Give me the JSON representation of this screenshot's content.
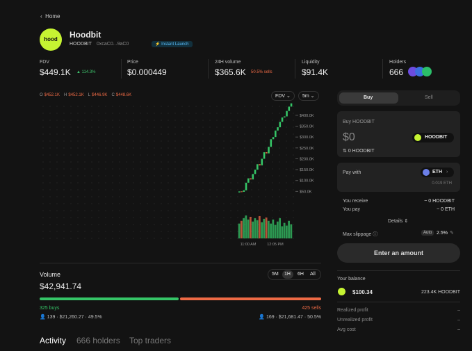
{
  "nav": {
    "back": "Home"
  },
  "token": {
    "logo": "hood",
    "name": "Hoodbit",
    "symbol": "HOODBIT",
    "address": "0xcaC0...9aC0",
    "badge": "Instant Launch"
  },
  "stats": {
    "fdv": {
      "label": "FDV",
      "value": "$449.1K",
      "change": "114.3%"
    },
    "price": {
      "label": "Price",
      "value": "$0.000449"
    },
    "volume": {
      "label": "24H volume",
      "value": "$365.6K",
      "note": "50.5% sells"
    },
    "liquidity": {
      "label": "Liquidity",
      "value": "$91.4K"
    },
    "holders": {
      "label": "Holders",
      "value": "666"
    }
  },
  "chart_data": {
    "type": "candlestick",
    "ohlc": [
      [
        "O",
        "$452.1K"
      ],
      [
        "H",
        "$452.1K"
      ],
      [
        "L",
        "$446.9K"
      ],
      [
        "C",
        "$448.6K"
      ]
    ],
    "selectors": [
      "FDV",
      "5m"
    ],
    "ylim": [
      0,
      470000
    ],
    "yticks": [
      {
        "value": 400000,
        "label": "$400.0K"
      },
      {
        "value": 350000,
        "label": "$350.0K"
      },
      {
        "value": 300000,
        "label": "$300.0K"
      },
      {
        "value": 250000,
        "label": "$250.0K"
      },
      {
        "value": 200000,
        "label": "$200.0K"
      },
      {
        "value": 150000,
        "label": "$150.0K"
      },
      {
        "value": 100000,
        "label": "$100.0K"
      },
      {
        "value": 50000,
        "label": "$50.0K"
      }
    ],
    "xticks": [
      "11:00 AM",
      "12:05 PM"
    ],
    "open": [
      45000,
      50000,
      48000,
      55000,
      90000,
      110000,
      105000,
      130000,
      150000,
      175000,
      170000,
      200000,
      230000,
      225000,
      255000,
      290000,
      300000,
      330000,
      345000,
      370000,
      390000,
      395000,
      420000,
      440000
    ],
    "close": [
      50000,
      48000,
      55000,
      90000,
      110000,
      105000,
      130000,
      150000,
      175000,
      170000,
      200000,
      230000,
      225000,
      255000,
      290000,
      300000,
      330000,
      345000,
      370000,
      390000,
      395000,
      420000,
      440000,
      455000
    ],
    "volume": [
      22,
      26,
      30,
      34,
      28,
      32,
      25,
      30,
      27,
      33,
      24,
      29,
      31,
      26,
      22,
      28,
      20,
      25,
      30,
      18,
      23,
      19,
      26,
      21
    ]
  },
  "trades": {
    "title": "Volume",
    "total": "$42,941.74",
    "ranges": [
      "5M",
      "1H",
      "6H",
      "All"
    ],
    "buys": "325 buys",
    "sells": "425 sells",
    "buy_stats": "139 · $21,260.27 · 49.5%",
    "sell_stats": "169 · $21,681.47 · 50.5%"
  },
  "tabs": [
    "Activity",
    "666 holders",
    "Top traders"
  ],
  "panel": {
    "toggle": [
      "Buy",
      "Sell"
    ],
    "buy_label": "Buy HOODBIT",
    "amount": "$0",
    "token": "HOODBIT",
    "converted": "0 HOODBIT",
    "pay_with": "Pay with",
    "pay_token": "ETH",
    "pay_balance": "0.019 ETH",
    "receive": [
      "You receive",
      "~ 0 HOODBIT"
    ],
    "pay": [
      "You pay",
      "~ 0 ETH"
    ],
    "details": "Details",
    "slippage": [
      "Max slippage",
      "Auto",
      "2.5%"
    ],
    "button": "Enter an amount"
  },
  "balance": {
    "title": "Your balance",
    "usd": "$100.34",
    "tokens": "223.4K HOODBIT",
    "rows": [
      [
        "Realized profit",
        "–"
      ],
      [
        "Unrealized profit",
        "–"
      ],
      [
        "Avg cost",
        "–"
      ]
    ]
  }
}
